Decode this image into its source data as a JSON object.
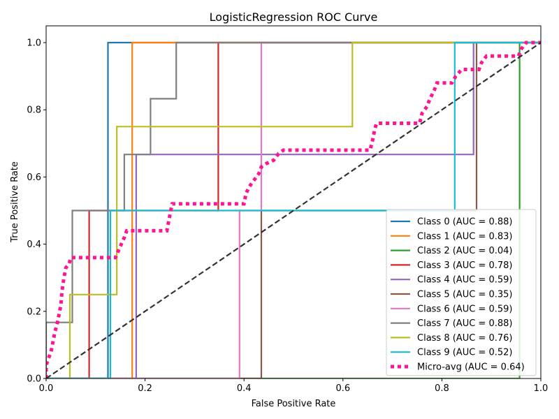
{
  "chart_data": {
    "type": "line",
    "title": "LogisticRegression ROC Curve",
    "xlabel": "False Positive Rate",
    "ylabel": "True Positive Rate",
    "xlim": [
      0.0,
      1.0
    ],
    "ylim": [
      0.0,
      1.05
    ],
    "xticks": [
      "0.0",
      "0.2",
      "0.4",
      "0.6",
      "0.8",
      "1.0"
    ],
    "yticks": [
      "0.0",
      "0.2",
      "0.4",
      "0.6",
      "0.8",
      "1.0"
    ],
    "legend_position": "lower right",
    "series": [
      {
        "name": "Class 0 (AUC = 0.88)",
        "color": "#1f77b4",
        "style": "solid",
        "points": [
          [
            0,
            0
          ],
          [
            0.125,
            0
          ],
          [
            0.125,
            1.0
          ],
          [
            1,
            1
          ]
        ]
      },
      {
        "name": "Class 1 (AUC = 0.83)",
        "color": "#ff7f0e",
        "style": "solid",
        "points": [
          [
            0,
            0
          ],
          [
            0.174,
            0
          ],
          [
            0.174,
            1.0
          ],
          [
            0.26,
            1.0
          ],
          [
            1,
            1
          ]
        ]
      },
      {
        "name": "Class 2 (AUC = 0.04)",
        "color": "#2ca02c",
        "style": "solid",
        "points": [
          [
            0,
            0
          ],
          [
            0.957,
            0
          ],
          [
            0.957,
            1.0
          ],
          [
            1,
            1
          ]
        ]
      },
      {
        "name": "Class 3 (AUC = 0.78)",
        "color": "#d62728",
        "style": "solid",
        "points": [
          [
            0,
            0
          ],
          [
            0.087,
            0
          ],
          [
            0.087,
            0.5
          ],
          [
            0.348,
            0.5
          ],
          [
            0.348,
            1.0
          ],
          [
            1,
            1
          ]
        ]
      },
      {
        "name": "Class 4 (AUC = 0.59)",
        "color": "#9467bd",
        "style": "solid",
        "points": [
          [
            0,
            0
          ],
          [
            0.182,
            0
          ],
          [
            0.182,
            0.667
          ],
          [
            0.864,
            0.667
          ],
          [
            0.864,
            1.0
          ],
          [
            1,
            1
          ]
        ]
      },
      {
        "name": "Class 5 (AUC = 0.35)",
        "color": "#8c564b",
        "style": "solid",
        "points": [
          [
            0,
            0
          ],
          [
            0.435,
            0
          ],
          [
            0.435,
            0.5
          ],
          [
            0.87,
            0.5
          ],
          [
            0.87,
            1.0
          ],
          [
            1,
            1
          ]
        ]
      },
      {
        "name": "Class 6 (AUC = 0.59)",
        "color": "#e377c2",
        "style": "solid",
        "points": [
          [
            0,
            0
          ],
          [
            0.391,
            0
          ],
          [
            0.391,
            0.5
          ],
          [
            0.435,
            0.5
          ],
          [
            0.435,
            1.0
          ],
          [
            1,
            1
          ]
        ]
      },
      {
        "name": "Class 7 (AUC = 0.88)",
        "color": "#7f7f7f",
        "style": "solid",
        "points": [
          [
            0,
            0
          ],
          [
            0,
            0.167
          ],
          [
            0.053,
            0.167
          ],
          [
            0.053,
            0.5
          ],
          [
            0.158,
            0.5
          ],
          [
            0.158,
            0.667
          ],
          [
            0.211,
            0.667
          ],
          [
            0.211,
            0.833
          ],
          [
            0.263,
            0.833
          ],
          [
            0.263,
            1.0
          ],
          [
            1,
            1
          ]
        ]
      },
      {
        "name": "Class 8 (AUC = 0.76)",
        "color": "#bcbd22",
        "style": "solid",
        "points": [
          [
            0,
            0
          ],
          [
            0.048,
            0
          ],
          [
            0.048,
            0.25
          ],
          [
            0.143,
            0.25
          ],
          [
            0.143,
            0.75
          ],
          [
            0.619,
            0.75
          ],
          [
            0.619,
            1.0
          ],
          [
            1,
            1
          ]
        ]
      },
      {
        "name": "Class 9 (AUC = 0.52)",
        "color": "#17becf",
        "style": "solid",
        "points": [
          [
            0,
            0
          ],
          [
            0.13,
            0
          ],
          [
            0.13,
            0.5
          ],
          [
            0.826,
            0.5
          ],
          [
            0.826,
            1.0
          ],
          [
            1,
            1
          ]
        ]
      },
      {
        "name": "Micro-avg (AUC = 0.64)",
        "color": "#ff1493",
        "style": "dotted",
        "points": [
          [
            0,
            0
          ],
          [
            0,
            0.04
          ],
          [
            0.005,
            0.06
          ],
          [
            0.01,
            0.08
          ],
          [
            0.014,
            0.11
          ],
          [
            0.018,
            0.14
          ],
          [
            0.022,
            0.16
          ],
          [
            0.026,
            0.19
          ],
          [
            0.03,
            0.22
          ],
          [
            0.032,
            0.26
          ],
          [
            0.036,
            0.3
          ],
          [
            0.04,
            0.33
          ],
          [
            0.046,
            0.34
          ],
          [
            0.05,
            0.36
          ],
          [
            0.14,
            0.36
          ],
          [
            0.146,
            0.38
          ],
          [
            0.152,
            0.4
          ],
          [
            0.158,
            0.42
          ],
          [
            0.163,
            0.44
          ],
          [
            0.244,
            0.44
          ],
          [
            0.248,
            0.47
          ],
          [
            0.252,
            0.5
          ],
          [
            0.255,
            0.52
          ],
          [
            0.4,
            0.52
          ],
          [
            0.404,
            0.55
          ],
          [
            0.41,
            0.57
          ],
          [
            0.42,
            0.59
          ],
          [
            0.43,
            0.61
          ],
          [
            0.435,
            0.63
          ],
          [
            0.445,
            0.64
          ],
          [
            0.46,
            0.65
          ],
          [
            0.47,
            0.67
          ],
          [
            0.48,
            0.68
          ],
          [
            0.655,
            0.68
          ],
          [
            0.66,
            0.71
          ],
          [
            0.664,
            0.74
          ],
          [
            0.668,
            0.76
          ],
          [
            0.755,
            0.76
          ],
          [
            0.76,
            0.79
          ],
          [
            0.77,
            0.81
          ],
          [
            0.775,
            0.83
          ],
          [
            0.785,
            0.86
          ],
          [
            0.79,
            0.88
          ],
          [
            0.82,
            0.88
          ],
          [
            0.828,
            0.9
          ],
          [
            0.84,
            0.92
          ],
          [
            0.875,
            0.92
          ],
          [
            0.88,
            0.94
          ],
          [
            0.89,
            0.96
          ],
          [
            0.955,
            0.96
          ],
          [
            0.96,
            0.98
          ],
          [
            0.97,
            1.0
          ],
          [
            1,
            1.0
          ]
        ]
      },
      {
        "name": "",
        "color": "#333333",
        "style": "dashed",
        "legend": false,
        "points": [
          [
            0,
            0
          ],
          [
            1,
            1
          ]
        ]
      }
    ]
  }
}
